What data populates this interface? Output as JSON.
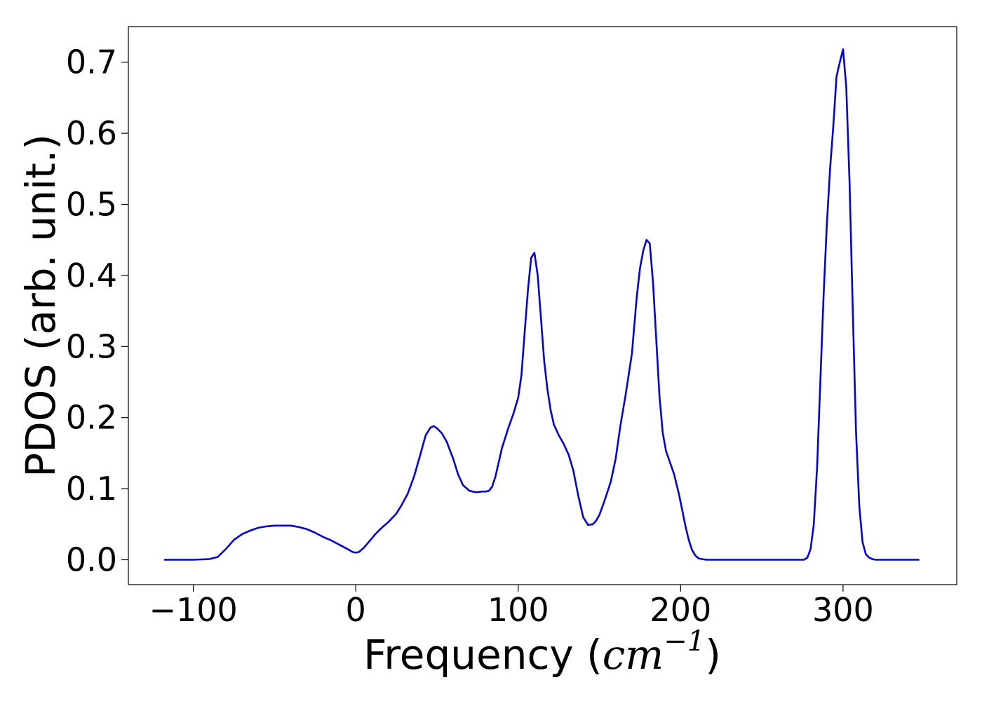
{
  "chart_data": {
    "type": "line",
    "xlabel_prefix": "Frequency (",
    "xlabel_unit": "cm",
    "xlabel_exp": "−1",
    "xlabel_suffix": ")",
    "ylabel": "PDOS (arb. unit.)",
    "xlim": [
      -140,
      370
    ],
    "ylim": [
      -0.035,
      0.75
    ],
    "xticks": [
      -100,
      0,
      100,
      200,
      300
    ],
    "xtick_labels": [
      "−100",
      "0",
      "100",
      "200",
      "300"
    ],
    "yticks": [
      0.0,
      0.1,
      0.2,
      0.3,
      0.4,
      0.5,
      0.6,
      0.7
    ],
    "ytick_labels": [
      "0.0",
      "0.1",
      "0.2",
      "0.3",
      "0.4",
      "0.5",
      "0.6",
      "0.7"
    ],
    "grid": false,
    "series": [
      {
        "color": "#0000ee",
        "x": [
          -118,
          -100,
          -90,
          -85,
          -80,
          -75,
          -70,
          -65,
          -60,
          -55,
          -50,
          -45,
          -40,
          -35,
          -30,
          -25,
          -20,
          -15,
          -10,
          -5,
          -2,
          0,
          2,
          5,
          8,
          12,
          16,
          20,
          25,
          28,
          32,
          36,
          40,
          43,
          46,
          48,
          50,
          53,
          56,
          60,
          63,
          66,
          70,
          74,
          78,
          80,
          82,
          84,
          86,
          90,
          94,
          97,
          100,
          102,
          104,
          106,
          108,
          110,
          112,
          114,
          116,
          118,
          120,
          122,
          125,
          128,
          131,
          134,
          137,
          140,
          143,
          146,
          148,
          150,
          153,
          157,
          160,
          163,
          166,
          170,
          173,
          175,
          177,
          179,
          181,
          183,
          185,
          187,
          189,
          191,
          193,
          196,
          199,
          201,
          203,
          205,
          207,
          209,
          211,
          213,
          216,
          220,
          240,
          260,
          276,
          278,
          280,
          282,
          284,
          286,
          288,
          290,
          292,
          294,
          296,
          298,
          300,
          302,
          304,
          306,
          308,
          310,
          312,
          314,
          316,
          318,
          320,
          330,
          347
        ],
        "y": [
          0.0,
          0.0,
          0.001,
          0.004,
          0.015,
          0.028,
          0.036,
          0.041,
          0.045,
          0.047,
          0.048,
          0.048,
          0.048,
          0.046,
          0.043,
          0.038,
          0.032,
          0.027,
          0.021,
          0.015,
          0.011,
          0.01,
          0.011,
          0.017,
          0.025,
          0.036,
          0.045,
          0.053,
          0.065,
          0.076,
          0.093,
          0.118,
          0.15,
          0.175,
          0.186,
          0.188,
          0.185,
          0.178,
          0.166,
          0.142,
          0.12,
          0.105,
          0.097,
          0.095,
          0.096,
          0.096,
          0.097,
          0.103,
          0.117,
          0.157,
          0.186,
          0.205,
          0.228,
          0.26,
          0.32,
          0.38,
          0.425,
          0.432,
          0.4,
          0.34,
          0.28,
          0.24,
          0.21,
          0.19,
          0.175,
          0.163,
          0.148,
          0.125,
          0.09,
          0.06,
          0.049,
          0.05,
          0.055,
          0.063,
          0.082,
          0.11,
          0.142,
          0.19,
          0.23,
          0.29,
          0.37,
          0.41,
          0.435,
          0.45,
          0.445,
          0.39,
          0.31,
          0.23,
          0.178,
          0.153,
          0.14,
          0.12,
          0.092,
          0.07,
          0.047,
          0.028,
          0.014,
          0.006,
          0.002,
          0.001,
          0.0,
          0.0,
          0.0,
          0.0,
          0.0,
          0.003,
          0.015,
          0.05,
          0.13,
          0.25,
          0.37,
          0.47,
          0.55,
          0.61,
          0.68,
          0.7,
          0.718,
          0.665,
          0.53,
          0.35,
          0.18,
          0.075,
          0.025,
          0.008,
          0.003,
          0.001,
          0.0,
          0.0,
          0.0
        ]
      }
    ]
  }
}
